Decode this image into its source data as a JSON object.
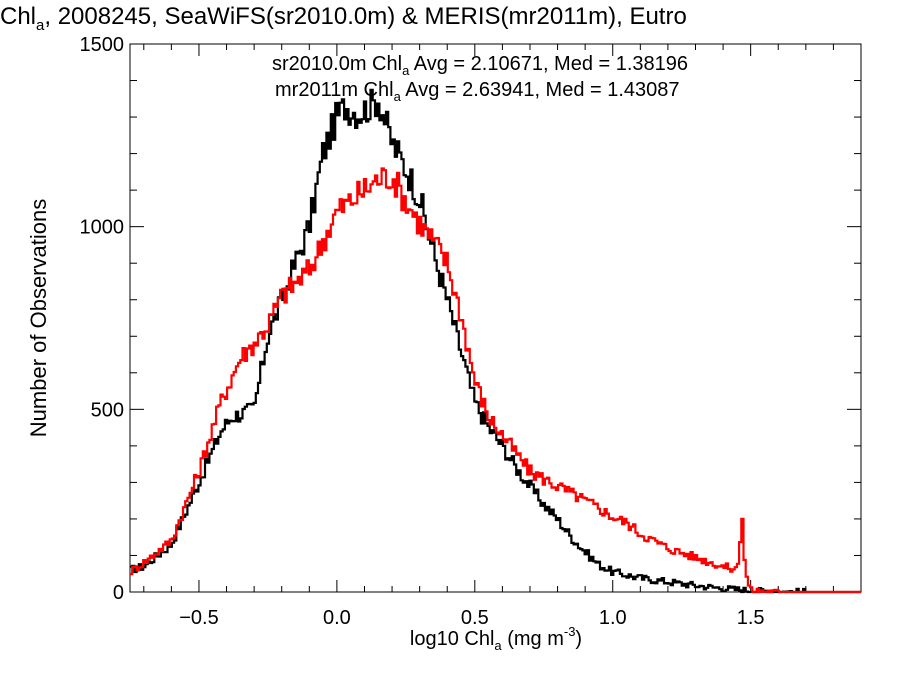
{
  "chart_data": {
    "type": "line",
    "title": {
      "prefix": "Chl",
      "sub": "a",
      "rest": ", 2008245, SeaWiFS(sr2010.0m) & MERIS(mr2011m), Eutro"
    },
    "xlabel": {
      "prefix": "log10 Chl",
      "sub": "a",
      "mid": " (mg m",
      "sup": "-3",
      "suffix": ")"
    },
    "ylabel": "Number of Observations",
    "xlim": [
      -0.75,
      1.9
    ],
    "ylim": [
      0,
      1500
    ],
    "xticks": [
      -0.5,
      0.0,
      0.5,
      1.0,
      1.5
    ],
    "xtick_labels": [
      "−0.5",
      "0.0",
      "0.5",
      "1.0",
      "1.5"
    ],
    "yticks": [
      0,
      500,
      1000,
      1500
    ],
    "ytick_labels": [
      "0",
      "500",
      "1000",
      "1500"
    ],
    "legend": {
      "placement": "top-center",
      "entries": [
        {
          "prefix": "sr2010.0m Chl",
          "sub": "a",
          "suffix": " Avg = 2.10671, Med = 1.38196",
          "color": "#000000"
        },
        {
          "prefix": "mr2011m Chl",
          "sub": "a",
          "suffix": " Avg = 2.63941, Med = 1.43087",
          "color": "#ff0000"
        }
      ]
    },
    "series": [
      {
        "color": "#000000",
        "x": [
          -0.75,
          -0.7,
          -0.6,
          -0.5,
          -0.42,
          -0.38,
          -0.3,
          -0.25,
          -0.2,
          -0.1,
          -0.05,
          0.0,
          0.03,
          0.08,
          0.12,
          0.15,
          0.2,
          0.25,
          0.3,
          0.35,
          0.4,
          0.45,
          0.5,
          0.55,
          0.6,
          0.65,
          0.7,
          0.75,
          0.8,
          0.85,
          0.9,
          0.95,
          1.0,
          1.1,
          1.2,
          1.3,
          1.4,
          1.5,
          1.6,
          1.7,
          1.8,
          1.9
        ],
        "values": [
          60,
          70,
          130,
          300,
          440,
          480,
          500,
          700,
          800,
          1000,
          1200,
          1300,
          1330,
          1310,
          1330,
          1350,
          1230,
          1160,
          1080,
          930,
          800,
          660,
          520,
          450,
          400,
          340,
          290,
          240,
          200,
          150,
          110,
          75,
          55,
          38,
          28,
          18,
          10,
          4,
          1,
          0,
          0,
          0
        ]
      },
      {
        "color": "#ff0000",
        "x": [
          -0.75,
          -0.7,
          -0.6,
          -0.5,
          -0.42,
          -0.35,
          -0.3,
          -0.25,
          -0.2,
          -0.1,
          -0.05,
          0.0,
          0.05,
          0.1,
          0.15,
          0.2,
          0.25,
          0.3,
          0.35,
          0.4,
          0.45,
          0.5,
          0.55,
          0.6,
          0.65,
          0.7,
          0.75,
          0.8,
          0.85,
          0.9,
          0.95,
          1.0,
          1.05,
          1.1,
          1.2,
          1.3,
          1.4,
          1.45,
          1.47,
          1.48,
          1.49,
          1.5,
          1.6,
          1.7,
          1.8,
          1.9
        ],
        "values": [
          55,
          80,
          140,
          330,
          520,
          640,
          680,
          730,
          810,
          880,
          960,
          1040,
          1070,
          1100,
          1130,
          1140,
          1070,
          1010,
          960,
          900,
          760,
          580,
          480,
          430,
          380,
          330,
          310,
          290,
          270,
          250,
          230,
          205,
          190,
          160,
          120,
          95,
          70,
          60,
          200,
          60,
          30,
          5,
          0,
          0,
          0,
          0
        ]
      }
    ],
    "grid": false
  }
}
